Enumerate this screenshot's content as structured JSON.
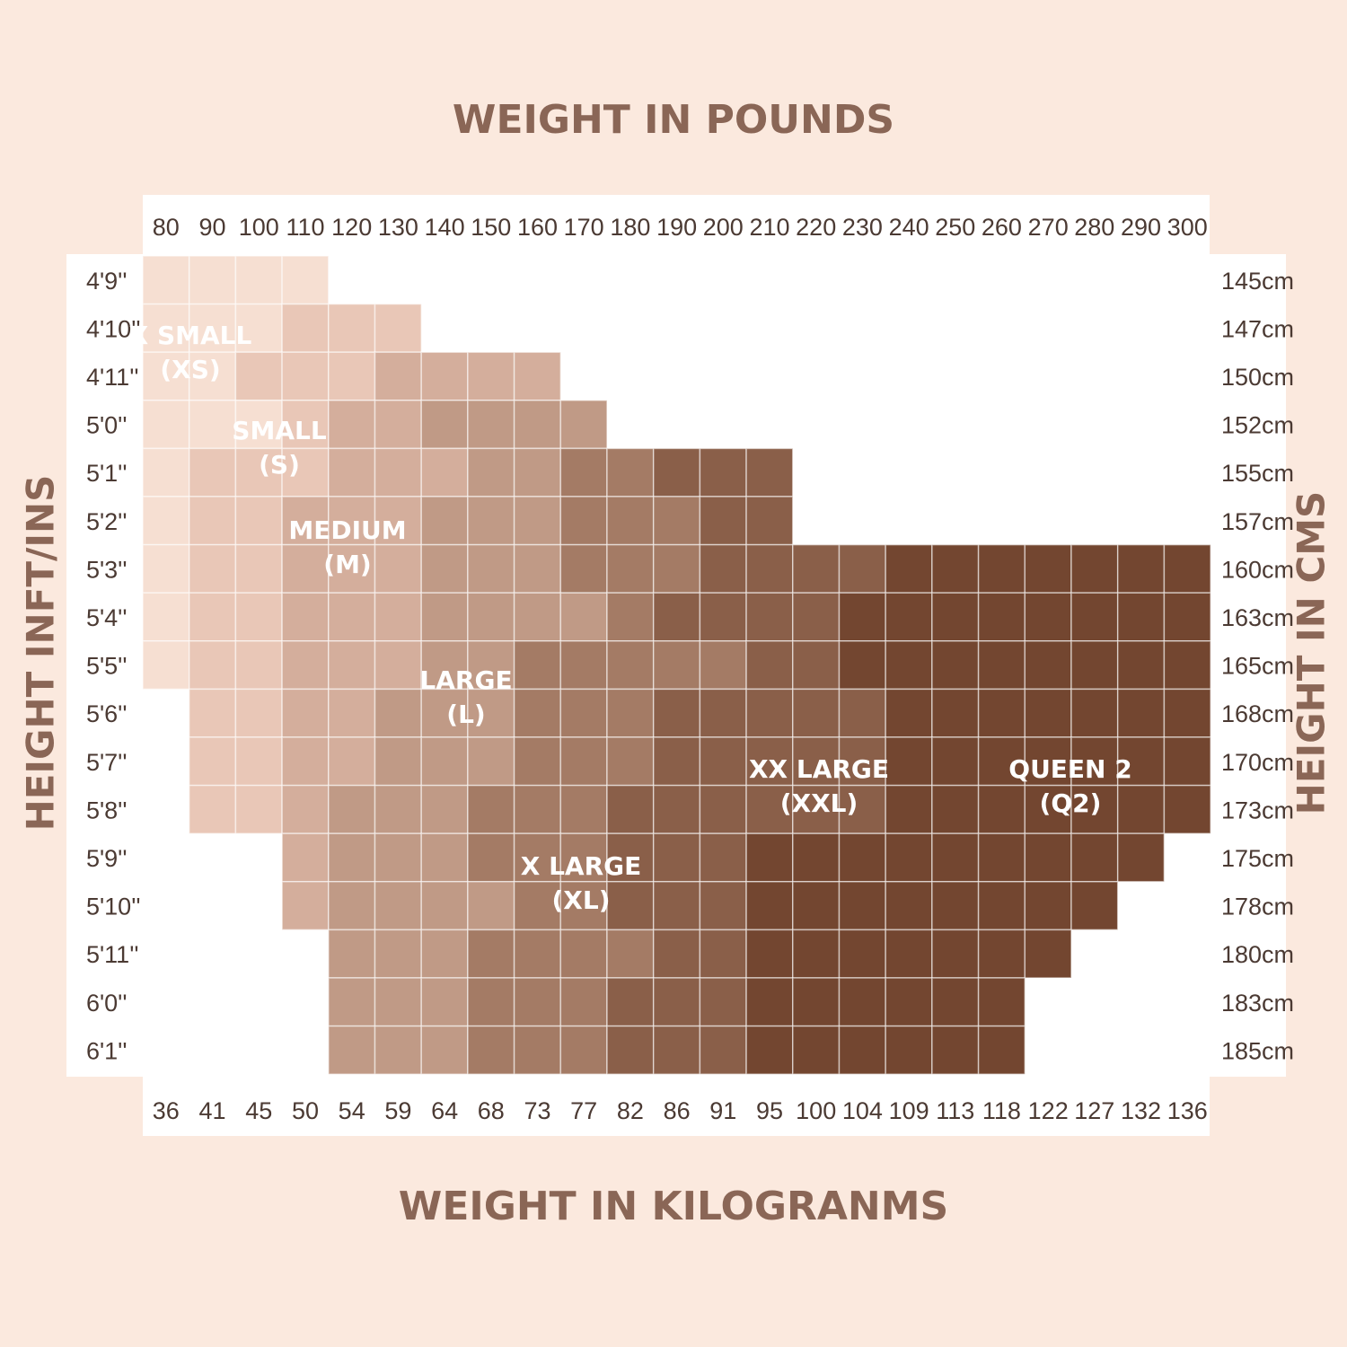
{
  "chart_data": {
    "type": "heatmap",
    "title": "WEIGHT IN POUNDS",
    "xlabel_bottom": "WEIGHT IN KILOGRANMS",
    "ylabel_left": "HEIGHT INFT/INS",
    "ylabel_right": "HEIGHT IN CMS",
    "x_pounds": [
      "80",
      "90",
      "100",
      "110",
      "120",
      "130",
      "140",
      "150",
      "160",
      "170",
      "180",
      "190",
      "200",
      "210",
      "220",
      "230",
      "240",
      "250",
      "260",
      "270",
      "280",
      "290",
      "300"
    ],
    "x_kg": [
      "36",
      "41",
      "45",
      "50",
      "54",
      "59",
      "64",
      "68",
      "73",
      "77",
      "82",
      "86",
      "91",
      "95",
      "100",
      "104",
      "109",
      "113",
      "118",
      "122",
      "127",
      "132",
      "136"
    ],
    "y_ftin": [
      "4'9''",
      "4'10''",
      "4'11''",
      "5'0''",
      "5'1''",
      "5'2''",
      "5'3''",
      "5'4''",
      "5'5''",
      "5'6''",
      "5'7''",
      "5'8''",
      "5'9''",
      "5'10''",
      "5'11''",
      "6'0''",
      "6'1''"
    ],
    "y_cm": [
      "145cm",
      "147cm",
      "150cm",
      "152cm",
      "155cm",
      "157cm",
      "160cm",
      "163cm",
      "165cm",
      "168cm",
      "170cm",
      "173cm",
      "175cm",
      "178cm",
      "180cm",
      "183cm",
      "185cm"
    ],
    "size_codes": {
      "0": "none",
      "1": "XS",
      "2": "S",
      "3": "M",
      "4": "L",
      "5": "XL",
      "6": "XXL",
      "7": "Q2"
    },
    "grid": [
      "11110000000000000000000",
      "11122200000000000000000",
      "11222333300000000000000",
      "11123344440000000000000",
      "12223334455666000000000",
      "12233344455566000000000",
      "12233344455566667777777",
      "12233344445666677777777",
      "12233344555556677777777",
      "02233444555666667777777",
      "02233444555666667777777",
      "02234445556666667777777",
      "00034445556667777777770",
      "00034444556667777777700",
      "00004445555667777777000",
      "00004445556667777770000",
      "00004445556667777770000"
    ],
    "zones": [
      {
        "code": "XS",
        "line1": "X SMALL",
        "line2": "(XS)"
      },
      {
        "code": "S",
        "line1": "SMALL",
        "line2": "(S)"
      },
      {
        "code": "M",
        "line1": "MEDIUM",
        "line2": "(M)"
      },
      {
        "code": "L",
        "line1": "LARGE",
        "line2": "(L)"
      },
      {
        "code": "XL",
        "line1": "X LARGE",
        "line2": "(XL)"
      },
      {
        "code": "XXL",
        "line1": "XX LARGE",
        "line2": "(XXL)"
      },
      {
        "code": "Q2",
        "line1": "QUEEN 2",
        "line2": "(Q2)"
      }
    ],
    "colors": {
      "background": "#fbe9de",
      "panel": "#ffffff",
      "title": "#8a6656",
      "XS": "#f6dfd2",
      "S": "#e9c7b7",
      "M": "#d4ae9c",
      "L": "#c09a86",
      "XL": "#a47b65",
      "XXL": "#8a5f49",
      "Q2": "#734630"
    }
  }
}
